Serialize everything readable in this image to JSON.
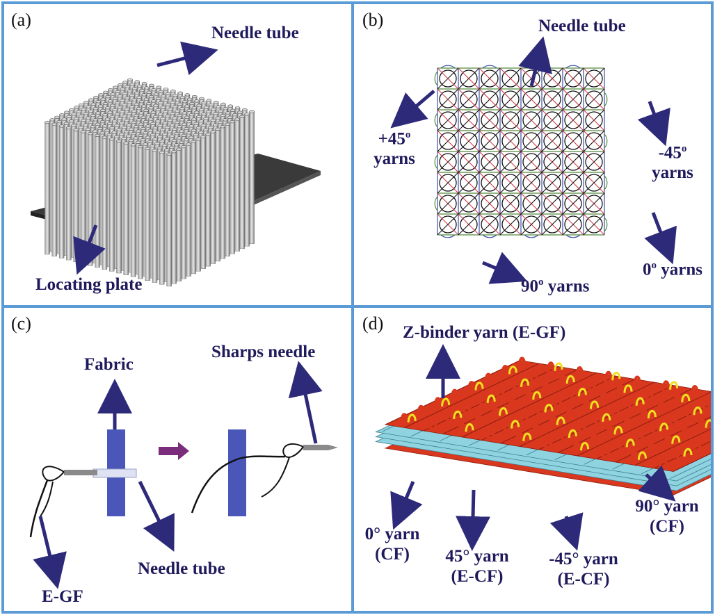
{
  "panels": {
    "a": {
      "label": "(a)",
      "needle_tube": "Needle tube",
      "locating_plate": "Locating plate"
    },
    "b": {
      "label": "(b)",
      "needle_tube": "Needle tube",
      "plus45": "+45",
      "plus45_yarns": "yarns",
      "minus45": "-45",
      "minus45_yarns": "yarns",
      "deg0": "0",
      "deg0_yarns": "yarns",
      "deg90": "90",
      "deg90_yarns": "yarns",
      "degree_sup": "o"
    },
    "c": {
      "label": "(c)",
      "fabric": "Fabric",
      "sharps_needle": "Sharps needle",
      "needle_tube": "Needle tube",
      "egf": "E-GF"
    },
    "d": {
      "label": "(d)",
      "zbinder": "Z-binder yarn (E-GF)",
      "y0": "0° yarn",
      "y0_sub": "(CF)",
      "y45": "45° yarn",
      "y45_sub": "(E-CF)",
      "ym45": "-45° yarn",
      "ym45_sub": "(E-CF)",
      "y90": "90° yarn",
      "y90_sub": "(CF)"
    }
  },
  "colors": {
    "border": "#5b9bd5",
    "arrow": "#2e2a7a",
    "label": "#1f1a5c",
    "red_yarn": "#d9381e",
    "yellow_yarn": "#f0e020",
    "cyan_yarn": "#8fd3e0",
    "fabric": "#4a56b8"
  }
}
